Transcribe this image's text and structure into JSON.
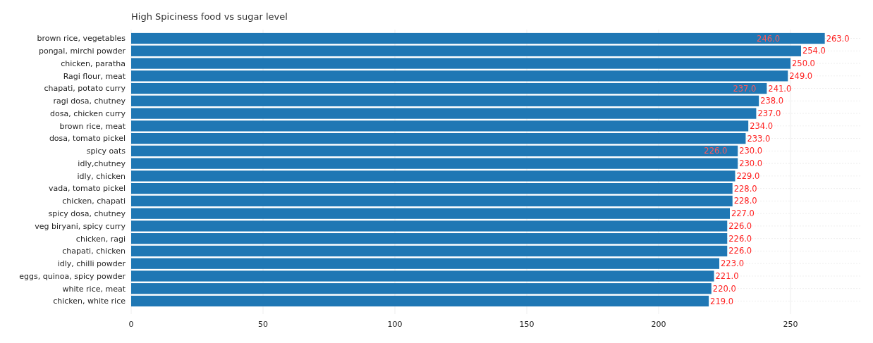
{
  "chart_data": {
    "type": "bar",
    "orientation": "horizontal",
    "title": "High Spiciness food vs sugar level",
    "categories": [
      "brown rice, vegetables",
      "pongal, mirchi powder",
      "chicken, paratha",
      "Ragi flour, meat",
      "chapati, potato curry",
      "ragi dosa, chutney",
      "dosa, chicken curry",
      "brown rice, meat",
      "dosa, tomato pickel",
      "spicy oats",
      "idly,chutney",
      "idly, chicken",
      "vada, tomato pickel",
      "chicken, chapati",
      "spicy dosa, chutney",
      "veg biryani, spicy curry",
      "chicken, ragi",
      "chapati,  chicken",
      "idly, chilli powder",
      "eggs, quinoa, spicy powder",
      "white rice, meat",
      "chicken, white rice"
    ],
    "values": [
      263,
      254,
      250,
      249,
      241,
      238,
      237,
      234,
      233,
      230,
      230,
      229,
      228,
      228,
      227,
      226,
      226,
      226,
      223,
      221,
      220,
      219
    ],
    "value_labels": [
      "263.0",
      "254.0",
      "250.0",
      "249.0",
      "241.0",
      "238.0",
      "237.0",
      "234.0",
      "233.0",
      "230.0",
      "230.0",
      "229.0",
      "228.0",
      "228.0",
      "227.0",
      "226.0",
      "226.0",
      "226.0",
      "223.0",
      "221.0",
      "220.0",
      "219.0"
    ],
    "color": "#1f77b4",
    "annotations": [
      {
        "text": "246.0",
        "x": 246,
        "y": "brown rice, vegetables"
      },
      {
        "text": "237.0",
        "x": 237,
        "y": "chapati, potato curry"
      },
      {
        "text": "226.0",
        "x": 226,
        "y": "spicy oats"
      }
    ],
    "xlim": [
      0,
      277
    ],
    "xticks": [
      0,
      50,
      100,
      150,
      200,
      250
    ],
    "grid": true
  }
}
